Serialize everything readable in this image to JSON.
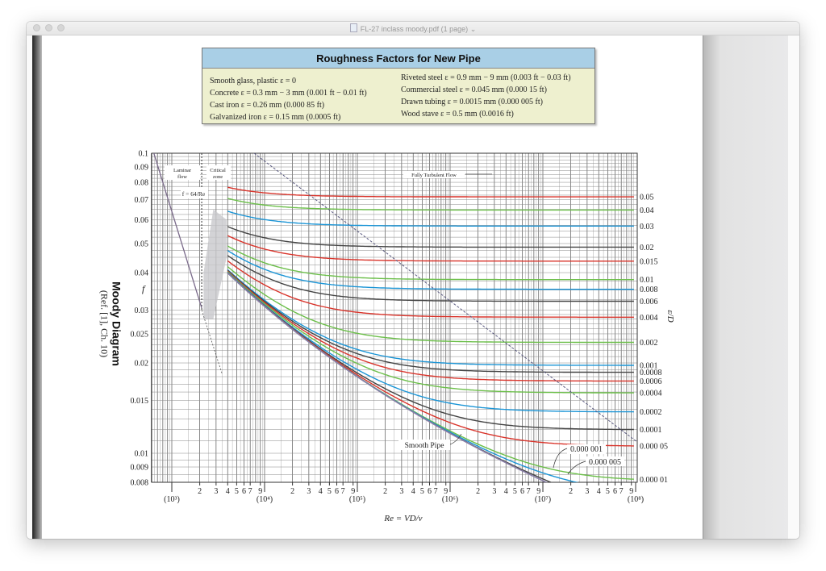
{
  "window": {
    "title": "FL-27 inclass moody.pdf (1 page)",
    "title_chevron": "⌄"
  },
  "roughness": {
    "title": "Roughness Factors for New Pipe",
    "left": [
      "Smooth glass, plastic ε = 0",
      "Concrete ε = 0.3 mm − 3 mm (0.001 ft − 0.01 ft)",
      "Cast iron ε = 0.26 mm (0.000 85 ft)",
      "Galvanized iron ε = 0.15 mm (0.0005 ft)"
    ],
    "right": [
      "Riveted steel ε = 0.9 mm − 9 mm (0.003 ft − 0.03 ft)",
      "Commercial steel ε = 0.045 mm (0.000 15 ft)",
      "Drawn tubing ε = 0.0015 mm (0.000 005 ft)",
      "Wood stave ε = 0.5 mm (0.0016 ft)"
    ]
  },
  "side": {
    "title": "Moody Diagram",
    "ref": "(Ref. [1], Ch. 10)"
  },
  "chart_data": {
    "type": "line",
    "title": "Moody Diagram",
    "xlabel": "Re = VD/ν",
    "ylabel": "f",
    "right_label": "ε/D",
    "xscale": "log",
    "yscale": "log",
    "xlim": [
      600,
      100000000
    ],
    "ylim": [
      0.008,
      0.1
    ],
    "grid": true,
    "y_ticks": [
      "0.1",
      "0.09",
      "0.08",
      "0.07",
      "0.06",
      "0.05",
      "0.04",
      "0.03",
      "0.025",
      "0.02",
      "0.015",
      "0.01",
      "0.009",
      "0.008"
    ],
    "y_tick_values": [
      0.1,
      0.09,
      0.08,
      0.07,
      0.06,
      0.05,
      0.04,
      0.03,
      0.025,
      0.02,
      0.015,
      0.01,
      0.009,
      0.008
    ],
    "x_decades": [
      {
        "label": "(10³)",
        "value": 1000
      },
      {
        "label": "(10⁴)",
        "value": 10000
      },
      {
        "label": "(10⁵)",
        "value": 100000
      },
      {
        "label": "(10⁶)",
        "value": 1000000
      },
      {
        "label": "(10⁷)",
        "value": 10000000
      },
      {
        "label": "(10⁸)",
        "value": 100000000
      }
    ],
    "x_minor_labels": [
      "2",
      "3",
      "4",
      "5",
      "6",
      "7",
      "9"
    ],
    "x_minor_values": [
      2,
      3,
      4,
      5,
      6,
      7,
      9
    ],
    "laminar": {
      "formula": "f = 64/Re",
      "label_top": "Laminar",
      "label_bottom": "flow",
      "re_range": [
        600,
        3500
      ]
    },
    "critical": {
      "label_top": "Critical",
      "label_bottom": "zone",
      "re_range": [
        2100,
        4000
      ]
    },
    "fully_turbulent_label": "Fully Turbulent Flow",
    "series": [
      {
        "name": "0.05",
        "eD": 0.05,
        "color": "#d9342b"
      },
      {
        "name": "0.04",
        "eD": 0.04,
        "color": "#6cbf4a"
      },
      {
        "name": "0.03",
        "eD": 0.03,
        "color": "#1b95d6"
      },
      {
        "name": "0.02",
        "eD": 0.02,
        "color": "#444444"
      },
      {
        "name": "0.015",
        "eD": 0.015,
        "color": "#d9342b"
      },
      {
        "name": "0.01",
        "eD": 0.01,
        "color": "#6cbf4a"
      },
      {
        "name": "0.008",
        "eD": 0.008,
        "color": "#1b95d6"
      },
      {
        "name": "0.006",
        "eD": 0.006,
        "color": "#444444"
      },
      {
        "name": "0.004",
        "eD": 0.004,
        "color": "#d9342b"
      },
      {
        "name": "0.002",
        "eD": 0.002,
        "color": "#6cbf4a"
      },
      {
        "name": "0.001",
        "eD": 0.001,
        "color": "#1b95d6"
      },
      {
        "name": "0.0008",
        "eD": 0.0008,
        "color": "#444444"
      },
      {
        "name": "0.0006",
        "eD": 0.0006,
        "color": "#d9342b"
      },
      {
        "name": "0.0004",
        "eD": 0.0004,
        "color": "#6cbf4a"
      },
      {
        "name": "0.0002",
        "eD": 0.0002,
        "color": "#1b95d6"
      },
      {
        "name": "0.0001",
        "eD": 0.0001,
        "color": "#444444"
      },
      {
        "name": "0.000 05",
        "eD": 5e-05,
        "color": "#d9342b"
      },
      {
        "name": "0.000 01",
        "eD": 1e-05,
        "color": "#6cbf4a"
      },
      {
        "name": "0.000 005",
        "eD": 5e-06,
        "color": "#1b95d6"
      },
      {
        "name": "0.000 001",
        "eD": 1e-06,
        "color": "#444444"
      },
      {
        "name": "Smooth Pipe",
        "eD": 0,
        "color": "#8a7fa8"
      }
    ],
    "right_axis_labels": [
      "0.05",
      "0.04",
      "0.03",
      "0.02",
      "0.015",
      "0.01",
      "0.008",
      "0.006",
      "0.004",
      "0.002",
      "0.001",
      "0.0008",
      "0.0006",
      "0.0004",
      "0.0002",
      "0.0001",
      "0.000 05",
      "0.000 01"
    ],
    "annotations": [
      "Smooth Pipe",
      "0.000 001",
      "0.000 005"
    ]
  }
}
